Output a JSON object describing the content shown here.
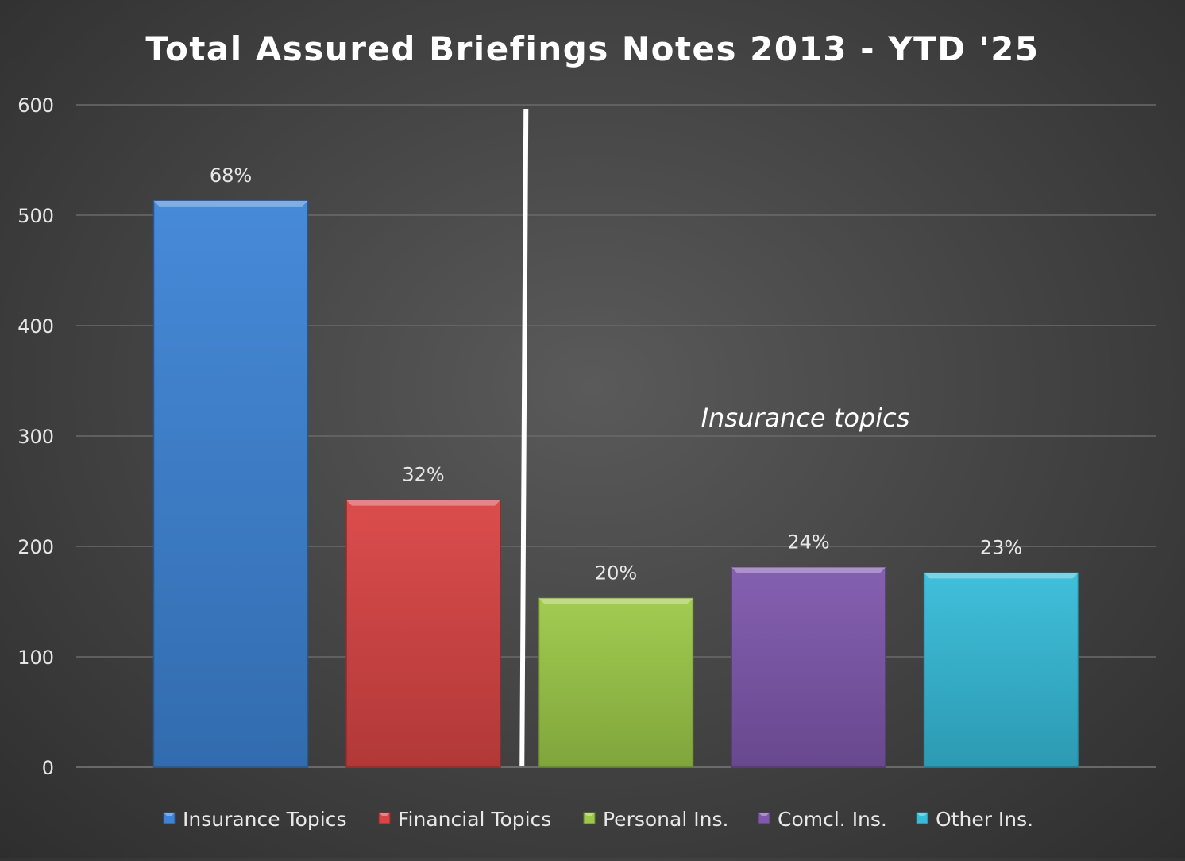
{
  "chart_data": {
    "type": "bar",
    "title": "Total Assured Briefings Notes 2013 - YTD '25",
    "xlabel": "",
    "ylabel": "",
    "ylim": [
      0,
      600
    ],
    "yticks": [
      0,
      100,
      200,
      300,
      400,
      500,
      600
    ],
    "grid": true,
    "legend_position": "bottom",
    "categories": [
      "Insurance Topics",
      "Financial Topics",
      "Personal Ins.",
      "Comcl. Ins.",
      "Other Ins."
    ],
    "values": [
      513,
      242,
      153,
      181,
      176
    ],
    "data_labels": [
      "68%",
      "32%",
      "20%",
      "24%",
      "23%"
    ],
    "colors": [
      "#3d84d6",
      "#d94444",
      "#9cc948",
      "#7f58ad",
      "#36bcd9"
    ],
    "annotation": "Insurance topics",
    "separator_after_index": 1
  }
}
